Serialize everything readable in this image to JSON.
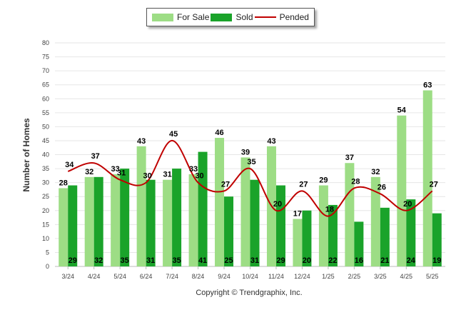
{
  "legend": {
    "for_sale": "For Sale",
    "sold": "Sold",
    "pended": "Pended"
  },
  "colors": {
    "for_sale": "#9ddd85",
    "sold": "#1aa32a",
    "pended": "#c00000",
    "grid": "#e6e6e6"
  },
  "copyright": "Copyright © Trendgraphix, Inc.",
  "chart_data": {
    "type": "bar",
    "title": "",
    "xlabel": "",
    "ylabel": "Number of Homes",
    "ylim": [
      0,
      80
    ],
    "yticks": [
      0,
      5,
      10,
      15,
      20,
      25,
      30,
      35,
      40,
      45,
      50,
      55,
      60,
      65,
      70,
      75,
      80
    ],
    "grid": true,
    "legend_position": "top-center",
    "categories": [
      "3/24",
      "4/24",
      "5/24",
      "6/24",
      "7/24",
      "8/24",
      "9/24",
      "10/24",
      "11/24",
      "12/24",
      "1/25",
      "2/25",
      "3/25",
      "4/25",
      "5/25"
    ],
    "series": [
      {
        "name": "For Sale",
        "type": "bar",
        "values": [
          28,
          32,
          33,
          43,
          31,
          33,
          46,
          39,
          43,
          17,
          29,
          37,
          32,
          54,
          63
        ]
      },
      {
        "name": "Sold",
        "type": "bar",
        "values": [
          29,
          32,
          35,
          31,
          35,
          41,
          25,
          31,
          29,
          20,
          22,
          16,
          21,
          24,
          19
        ]
      },
      {
        "name": "Pended",
        "type": "line",
        "values": [
          34,
          37,
          31,
          30,
          45,
          30,
          27,
          35,
          20,
          27,
          18,
          28,
          26,
          20,
          27
        ]
      }
    ]
  }
}
